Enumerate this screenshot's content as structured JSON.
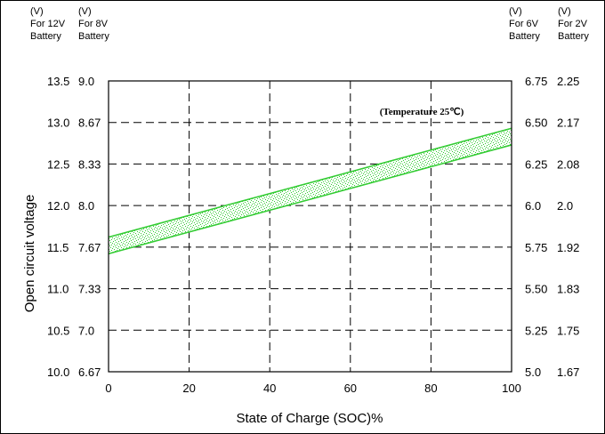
{
  "chart_data": {
    "type": "area",
    "xlabel": "State of Charge (SOC)%",
    "ylabel": "Open circuit voltage",
    "annotation": "(Temperature 25℃)",
    "xlim": [
      0,
      100
    ],
    "ylim": [
      10.0,
      13.5
    ],
    "x_ticks": [
      "0",
      "20",
      "40",
      "60",
      "80",
      "100"
    ],
    "grid": true,
    "band_color": "#33cc33",
    "left_axes": [
      {
        "unit": [
          "(V)",
          "For 12V",
          "Battery"
        ],
        "ticks": [
          "13.5",
          "13.0",
          "12.5",
          "12.0",
          "11.5",
          "11.0",
          "10.5",
          "10.0"
        ]
      },
      {
        "unit": [
          "(V)",
          "For 8V",
          "Battery"
        ],
        "ticks": [
          "9.0",
          "8.67",
          "8.33",
          "8.0",
          "7.67",
          "7.33",
          "7.0",
          "6.67"
        ]
      }
    ],
    "right_axes": [
      {
        "unit": [
          "(V)",
          "For 6V",
          "Battery"
        ],
        "ticks": [
          "6.75",
          "6.50",
          "6.25",
          "6.0",
          "5.75",
          "5.50",
          "5.25",
          "5.0"
        ]
      },
      {
        "unit": [
          "(V)",
          "For 2V",
          "Battery"
        ],
        "ticks": [
          "2.25",
          "2.17",
          "2.08",
          "2.0",
          "1.92",
          "1.83",
          "1.75",
          "1.67"
        ]
      }
    ],
    "series": [
      {
        "x": [
          0,
          100
        ],
        "upper": [
          11.62,
          12.93
        ],
        "lower": [
          11.42,
          12.73
        ]
      }
    ]
  }
}
